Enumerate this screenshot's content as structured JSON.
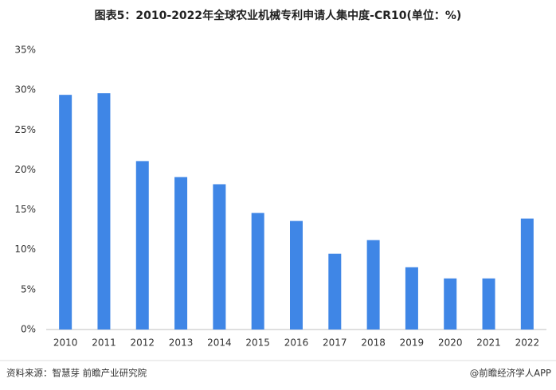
{
  "chart_data": {
    "type": "bar",
    "title": "图表5：2010-2022年全球农业机械专利申请人集中度-CR10(单位：%)",
    "categories": [
      "2010",
      "2011",
      "2012",
      "2013",
      "2014",
      "2015",
      "2016",
      "2017",
      "2018",
      "2019",
      "2020",
      "2021",
      "2022"
    ],
    "values": [
      29.4,
      29.6,
      21.1,
      19.1,
      18.2,
      14.6,
      13.6,
      9.5,
      11.2,
      7.8,
      6.4,
      6.4,
      13.9
    ],
    "color": "#3f86e6",
    "ylim": [
      0,
      35
    ],
    "yticks": [
      {
        "value": 0,
        "label": "0%"
      },
      {
        "value": 5,
        "label": "5%"
      },
      {
        "value": 10,
        "label": "10%"
      },
      {
        "value": 15,
        "label": "15%"
      },
      {
        "value": 20,
        "label": "20%"
      },
      {
        "value": 25,
        "label": "25%"
      },
      {
        "value": 30,
        "label": "30%"
      },
      {
        "value": 35,
        "label": "35%"
      }
    ],
    "grid": false,
    "source": "资料来源：智慧芽 前瞻产业研究院",
    "credit": "@前瞻经济学人APP"
  }
}
